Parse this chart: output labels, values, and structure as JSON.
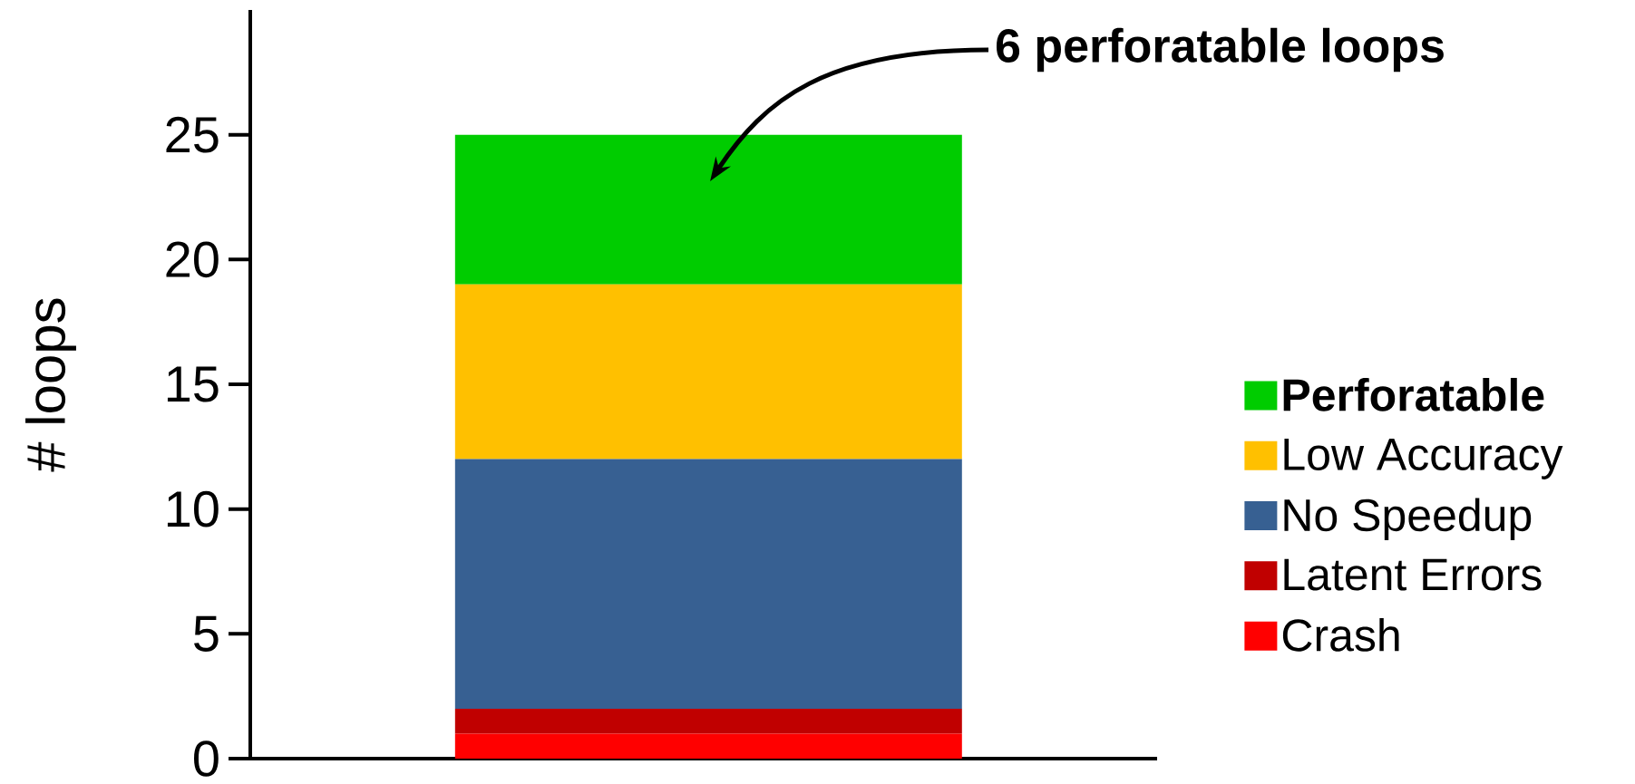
{
  "chart_data": {
    "type": "bar",
    "stacked": true,
    "categories": [
      null
    ],
    "ylabel": "# loops",
    "ylim": [
      0,
      30
    ],
    "yticks": [
      0,
      5,
      10,
      15,
      20,
      25
    ],
    "legend": "right",
    "grid": false,
    "series": [
      {
        "name": "Crash",
        "color": "#ff0000",
        "values": [
          1
        ]
      },
      {
        "name": "Latent Errors",
        "color": "#c00000",
        "values": [
          1
        ]
      },
      {
        "name": "No Speedup",
        "color": "#376092",
        "values": [
          10
        ]
      },
      {
        "name": "Low Accuracy",
        "color": "#ffc000",
        "values": [
          7
        ]
      },
      {
        "name": "**Perforatable**",
        "color": "#00cc00",
        "values": [
          6
        ]
      }
    ],
    "annotations": [
      "**6 perforatable loops**"
    ]
  }
}
